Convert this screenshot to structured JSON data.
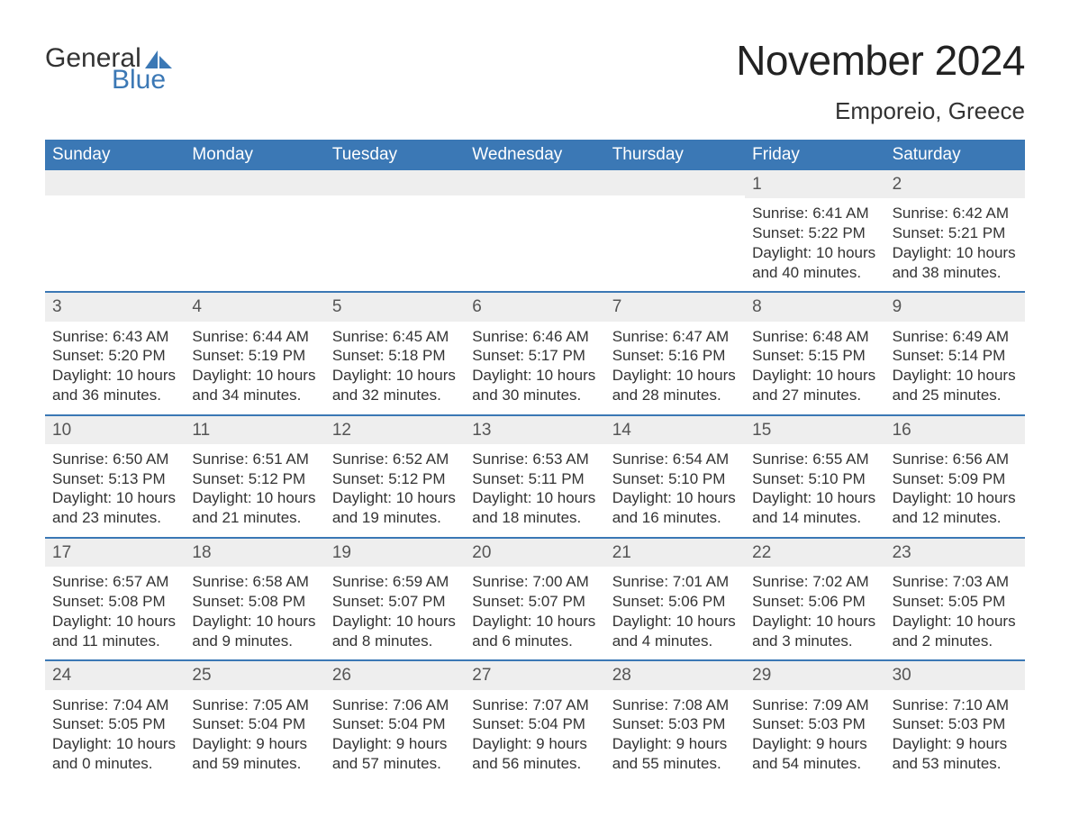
{
  "brand": {
    "word1": "General",
    "word2": "Blue",
    "text_color": "#333333",
    "accent_color": "#3b78b5"
  },
  "title": "November 2024",
  "location": "Emporeio, Greece",
  "colors": {
    "header_bg": "#3b78b5",
    "header_text": "#ffffff",
    "daynum_bg": "#eeeeee",
    "row_border": "#3b78b5",
    "body_text": "#333333",
    "background": "#ffffff"
  },
  "calendar": {
    "type": "table",
    "columns": [
      "Sunday",
      "Monday",
      "Tuesday",
      "Wednesday",
      "Thursday",
      "Friday",
      "Saturday"
    ],
    "weeks": [
      [
        null,
        null,
        null,
        null,
        null,
        {
          "day": "1",
          "sunrise": "Sunrise: 6:41 AM",
          "sunset": "Sunset: 5:22 PM",
          "daylight1": "Daylight: 10 hours",
          "daylight2": "and 40 minutes."
        },
        {
          "day": "2",
          "sunrise": "Sunrise: 6:42 AM",
          "sunset": "Sunset: 5:21 PM",
          "daylight1": "Daylight: 10 hours",
          "daylight2": "and 38 minutes."
        }
      ],
      [
        {
          "day": "3",
          "sunrise": "Sunrise: 6:43 AM",
          "sunset": "Sunset: 5:20 PM",
          "daylight1": "Daylight: 10 hours",
          "daylight2": "and 36 minutes."
        },
        {
          "day": "4",
          "sunrise": "Sunrise: 6:44 AM",
          "sunset": "Sunset: 5:19 PM",
          "daylight1": "Daylight: 10 hours",
          "daylight2": "and 34 minutes."
        },
        {
          "day": "5",
          "sunrise": "Sunrise: 6:45 AM",
          "sunset": "Sunset: 5:18 PM",
          "daylight1": "Daylight: 10 hours",
          "daylight2": "and 32 minutes."
        },
        {
          "day": "6",
          "sunrise": "Sunrise: 6:46 AM",
          "sunset": "Sunset: 5:17 PM",
          "daylight1": "Daylight: 10 hours",
          "daylight2": "and 30 minutes."
        },
        {
          "day": "7",
          "sunrise": "Sunrise: 6:47 AM",
          "sunset": "Sunset: 5:16 PM",
          "daylight1": "Daylight: 10 hours",
          "daylight2": "and 28 minutes."
        },
        {
          "day": "8",
          "sunrise": "Sunrise: 6:48 AM",
          "sunset": "Sunset: 5:15 PM",
          "daylight1": "Daylight: 10 hours",
          "daylight2": "and 27 minutes."
        },
        {
          "day": "9",
          "sunrise": "Sunrise: 6:49 AM",
          "sunset": "Sunset: 5:14 PM",
          "daylight1": "Daylight: 10 hours",
          "daylight2": "and 25 minutes."
        }
      ],
      [
        {
          "day": "10",
          "sunrise": "Sunrise: 6:50 AM",
          "sunset": "Sunset: 5:13 PM",
          "daylight1": "Daylight: 10 hours",
          "daylight2": "and 23 minutes."
        },
        {
          "day": "11",
          "sunrise": "Sunrise: 6:51 AM",
          "sunset": "Sunset: 5:12 PM",
          "daylight1": "Daylight: 10 hours",
          "daylight2": "and 21 minutes."
        },
        {
          "day": "12",
          "sunrise": "Sunrise: 6:52 AM",
          "sunset": "Sunset: 5:12 PM",
          "daylight1": "Daylight: 10 hours",
          "daylight2": "and 19 minutes."
        },
        {
          "day": "13",
          "sunrise": "Sunrise: 6:53 AM",
          "sunset": "Sunset: 5:11 PM",
          "daylight1": "Daylight: 10 hours",
          "daylight2": "and 18 minutes."
        },
        {
          "day": "14",
          "sunrise": "Sunrise: 6:54 AM",
          "sunset": "Sunset: 5:10 PM",
          "daylight1": "Daylight: 10 hours",
          "daylight2": "and 16 minutes."
        },
        {
          "day": "15",
          "sunrise": "Sunrise: 6:55 AM",
          "sunset": "Sunset: 5:10 PM",
          "daylight1": "Daylight: 10 hours",
          "daylight2": "and 14 minutes."
        },
        {
          "day": "16",
          "sunrise": "Sunrise: 6:56 AM",
          "sunset": "Sunset: 5:09 PM",
          "daylight1": "Daylight: 10 hours",
          "daylight2": "and 12 minutes."
        }
      ],
      [
        {
          "day": "17",
          "sunrise": "Sunrise: 6:57 AM",
          "sunset": "Sunset: 5:08 PM",
          "daylight1": "Daylight: 10 hours",
          "daylight2": "and 11 minutes."
        },
        {
          "day": "18",
          "sunrise": "Sunrise: 6:58 AM",
          "sunset": "Sunset: 5:08 PM",
          "daylight1": "Daylight: 10 hours",
          "daylight2": "and 9 minutes."
        },
        {
          "day": "19",
          "sunrise": "Sunrise: 6:59 AM",
          "sunset": "Sunset: 5:07 PM",
          "daylight1": "Daylight: 10 hours",
          "daylight2": "and 8 minutes."
        },
        {
          "day": "20",
          "sunrise": "Sunrise: 7:00 AM",
          "sunset": "Sunset: 5:07 PM",
          "daylight1": "Daylight: 10 hours",
          "daylight2": "and 6 minutes."
        },
        {
          "day": "21",
          "sunrise": "Sunrise: 7:01 AM",
          "sunset": "Sunset: 5:06 PM",
          "daylight1": "Daylight: 10 hours",
          "daylight2": "and 4 minutes."
        },
        {
          "day": "22",
          "sunrise": "Sunrise: 7:02 AM",
          "sunset": "Sunset: 5:06 PM",
          "daylight1": "Daylight: 10 hours",
          "daylight2": "and 3 minutes."
        },
        {
          "day": "23",
          "sunrise": "Sunrise: 7:03 AM",
          "sunset": "Sunset: 5:05 PM",
          "daylight1": "Daylight: 10 hours",
          "daylight2": "and 2 minutes."
        }
      ],
      [
        {
          "day": "24",
          "sunrise": "Sunrise: 7:04 AM",
          "sunset": "Sunset: 5:05 PM",
          "daylight1": "Daylight: 10 hours",
          "daylight2": "and 0 minutes."
        },
        {
          "day": "25",
          "sunrise": "Sunrise: 7:05 AM",
          "sunset": "Sunset: 5:04 PM",
          "daylight1": "Daylight: 9 hours",
          "daylight2": "and 59 minutes."
        },
        {
          "day": "26",
          "sunrise": "Sunrise: 7:06 AM",
          "sunset": "Sunset: 5:04 PM",
          "daylight1": "Daylight: 9 hours",
          "daylight2": "and 57 minutes."
        },
        {
          "day": "27",
          "sunrise": "Sunrise: 7:07 AM",
          "sunset": "Sunset: 5:04 PM",
          "daylight1": "Daylight: 9 hours",
          "daylight2": "and 56 minutes."
        },
        {
          "day": "28",
          "sunrise": "Sunrise: 7:08 AM",
          "sunset": "Sunset: 5:03 PM",
          "daylight1": "Daylight: 9 hours",
          "daylight2": "and 55 minutes."
        },
        {
          "day": "29",
          "sunrise": "Sunrise: 7:09 AM",
          "sunset": "Sunset: 5:03 PM",
          "daylight1": "Daylight: 9 hours",
          "daylight2": "and 54 minutes."
        },
        {
          "day": "30",
          "sunrise": "Sunrise: 7:10 AM",
          "sunset": "Sunset: 5:03 PM",
          "daylight1": "Daylight: 9 hours",
          "daylight2": "and 53 minutes."
        }
      ]
    ]
  }
}
